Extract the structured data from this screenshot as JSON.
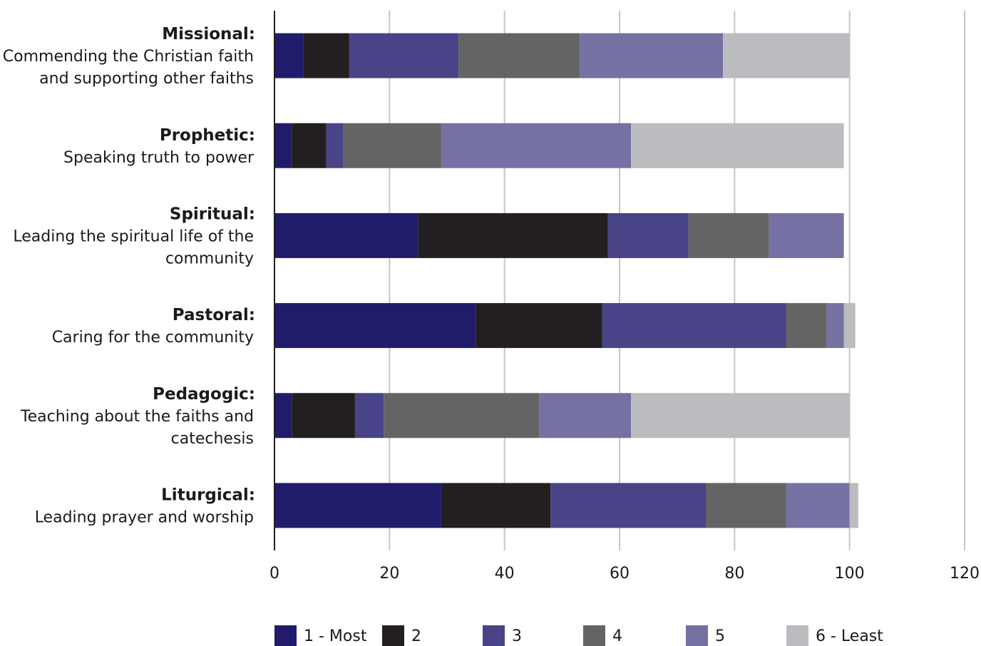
{
  "chart_data": {
    "type": "bar",
    "orientation": "horizontal",
    "stacked": true,
    "title": "",
    "xlabel": "",
    "ylabel": "",
    "xlim": [
      0,
      120
    ],
    "xticks": [
      0,
      20,
      40,
      60,
      80,
      100,
      120
    ],
    "grid": "vertical",
    "legend_position": "bottom",
    "categories": [
      {
        "name": "Missional:",
        "lines": [
          "Commending the Christian faith",
          "and supporting other faiths"
        ]
      },
      {
        "name": "Prophetic:",
        "lines": [
          "Speaking truth to power"
        ]
      },
      {
        "name": "Spiritual:",
        "lines": [
          "Leading the spiritual life of the",
          "community"
        ]
      },
      {
        "name": "Pastoral:",
        "lines": [
          "Caring for the community"
        ]
      },
      {
        "name": "Pedagogic:",
        "lines": [
          "Teaching about the faiths and",
          "catechesis"
        ]
      },
      {
        "name": "Liturgical:",
        "lines": [
          "Leading prayer and worship"
        ]
      }
    ],
    "series": [
      {
        "name": "1 - Most",
        "color": "#201c6b",
        "values": [
          5,
          3,
          25,
          35,
          3,
          29
        ]
      },
      {
        "name": "2",
        "color": "#231f20",
        "values": [
          8,
          6,
          33,
          22,
          11,
          19
        ]
      },
      {
        "name": "3",
        "color": "#484487",
        "values": [
          19,
          3,
          14,
          32,
          5,
          27
        ]
      },
      {
        "name": "4",
        "color": "#646464",
        "values": [
          21,
          17,
          14,
          7,
          27,
          14
        ]
      },
      {
        "name": "5",
        "color": "#7671a3",
        "values": [
          25,
          33,
          13,
          3,
          16,
          11
        ]
      },
      {
        "name": "6 - Least",
        "color": "#bbbcbf",
        "values": [
          22,
          37,
          0,
          2,
          38,
          1.5
        ]
      }
    ]
  }
}
